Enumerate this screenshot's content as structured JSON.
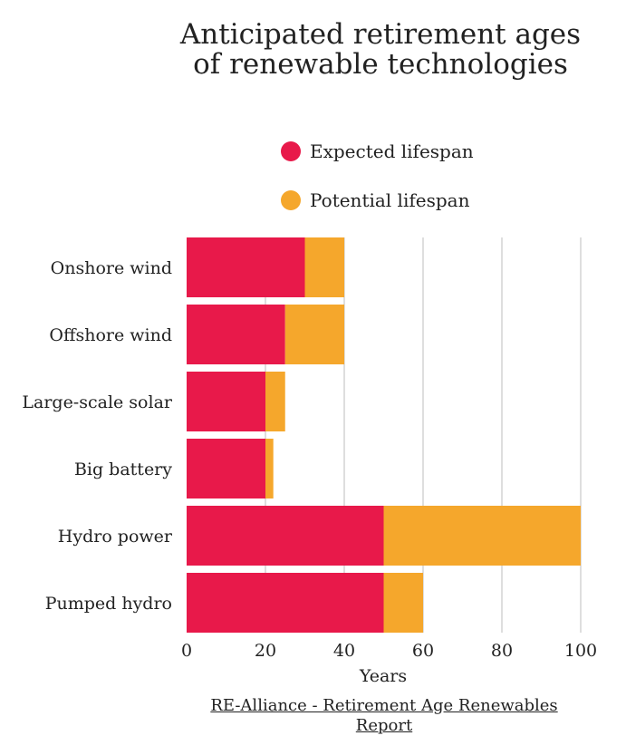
{
  "chart_data": {
    "type": "bar",
    "orientation": "horizontal",
    "stacked": true,
    "title": "Anticipated retirement ages of renewable technologies",
    "categories": [
      "Onshore wind",
      "Offshore wind",
      "Large-scale solar",
      "Big battery",
      "Hydro power",
      "Pumped hydro"
    ],
    "series": [
      {
        "name": "Expected lifespan",
        "color": "#e8194a",
        "values": [
          30,
          25,
          20,
          20,
          50,
          50
        ]
      },
      {
        "name": "Potential lifespan",
        "color": "#f5a72c",
        "values": [
          10,
          15,
          5,
          2,
          50,
          10
        ]
      }
    ],
    "xlabel": "Years",
    "ylabel": "",
    "xlim": [
      0,
      100
    ],
    "xticks": [
      0,
      20,
      40,
      60,
      80,
      100
    ],
    "grid": "vertical",
    "legend": "top"
  },
  "source": "RE-Alliance - Retirement Age Renewables Report"
}
